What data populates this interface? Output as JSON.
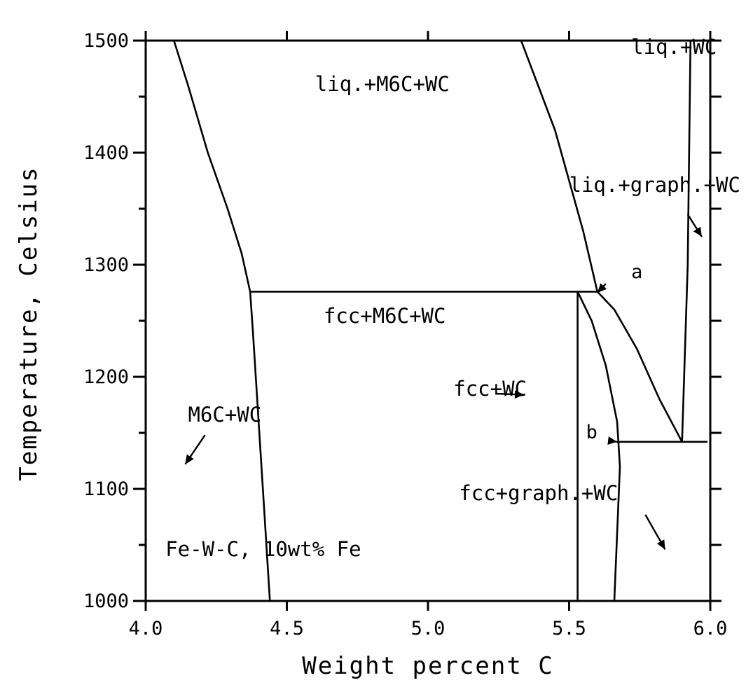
{
  "chart_data": {
    "type": "line",
    "title": "",
    "xlabel": "Weight percent C",
    "ylabel": "Temperature, Celsius",
    "xlim": [
      4.0,
      6.0
    ],
    "ylim": [
      1000,
      1500
    ],
    "xticks": [
      4.0,
      4.5,
      5.0,
      5.5,
      6.0
    ],
    "xtick_labels": [
      "4.0",
      "4.5",
      "5.0",
      "5.5",
      "6.0"
    ],
    "yticks": [
      1000,
      1100,
      1200,
      1300,
      1400,
      1500
    ],
    "ytick_labels": [
      "1000",
      "1100",
      "1200",
      "1300",
      "1400",
      "1500"
    ],
    "grid": false,
    "series": [
      {
        "points": [
          [
            4.1,
            1500
          ],
          [
            4.15,
            1460
          ],
          [
            4.22,
            1400
          ],
          [
            4.29,
            1350
          ],
          [
            4.34,
            1310
          ],
          [
            4.37,
            1276
          ]
        ]
      },
      {
        "points": [
          [
            4.37,
            1276
          ],
          [
            4.38,
            1240
          ],
          [
            4.4,
            1160
          ],
          [
            4.42,
            1080
          ],
          [
            4.44,
            1000
          ]
        ]
      },
      {
        "points": [
          [
            4.37,
            1276
          ],
          [
            5.6,
            1276
          ]
        ]
      },
      {
        "points": [
          [
            5.33,
            1500
          ],
          [
            5.39,
            1460
          ],
          [
            5.45,
            1420
          ],
          [
            5.5,
            1375
          ],
          [
            5.55,
            1330
          ],
          [
            5.6,
            1276
          ]
        ]
      },
      {
        "points": [
          [
            5.6,
            1276
          ],
          [
            5.66,
            1260
          ],
          [
            5.74,
            1225
          ],
          [
            5.82,
            1180
          ],
          [
            5.9,
            1142
          ]
        ]
      },
      {
        "points": [
          [
            5.53,
            1276
          ],
          [
            5.53,
            1000
          ]
        ]
      },
      {
        "points": [
          [
            5.53,
            1276
          ],
          [
            5.58,
            1250
          ],
          [
            5.63,
            1210
          ],
          [
            5.67,
            1160
          ],
          [
            5.68,
            1120
          ],
          [
            5.66,
            1000
          ]
        ]
      },
      {
        "points": [
          [
            5.67,
            1142
          ],
          [
            5.99,
            1142
          ]
        ]
      },
      {
        "points": [
          [
            5.9,
            1142
          ],
          [
            5.92,
            1300
          ],
          [
            5.93,
            1500
          ]
        ]
      },
      {
        "points": [
          [
            4.0,
            1500
          ],
          [
            5.99,
            1500
          ]
        ]
      }
    ],
    "annotations": [
      {
        "text": "liq.+M6C+WC",
        "x": 4.6,
        "y": 1455
      },
      {
        "text": "liq.+WC",
        "x": 5.72,
        "y": 1488
      },
      {
        "text": "liq.+graph.+WC",
        "x": 5.5,
        "y": 1365
      },
      {
        "text": "fcc+M6C+WC",
        "x": 4.63,
        "y": 1248
      },
      {
        "text": "fcc+WC",
        "x": 5.09,
        "y": 1183
      },
      {
        "text": "M6C+WC",
        "x": 4.15,
        "y": 1160
      },
      {
        "text": "fcc+graph.+WC",
        "x": 5.11,
        "y": 1090
      },
      {
        "text": "Fe-W-C, 10wt% Fe",
        "x": 4.07,
        "y": 1040
      },
      {
        "text": "a",
        "x": 5.72,
        "y": 1288
      },
      {
        "text": "b",
        "x": 5.56,
        "y": 1145
      }
    ],
    "arrows": [
      {
        "from": [
          5.92,
          1345
        ],
        "to": [
          5.97,
          1325
        ]
      },
      {
        "from": [
          5.63,
          1283
        ],
        "to": [
          5.6,
          1275
        ]
      },
      {
        "from": [
          5.24,
          1185
        ],
        "to": [
          5.34,
          1184
        ]
      },
      {
        "from": [
          4.21,
          1148
        ],
        "to": [
          4.14,
          1122
        ]
      },
      {
        "from": [
          5.64,
          1143
        ],
        "to": [
          5.67,
          1142
        ]
      },
      {
        "from": [
          5.77,
          1077
        ],
        "to": [
          5.84,
          1046
        ]
      }
    ]
  }
}
